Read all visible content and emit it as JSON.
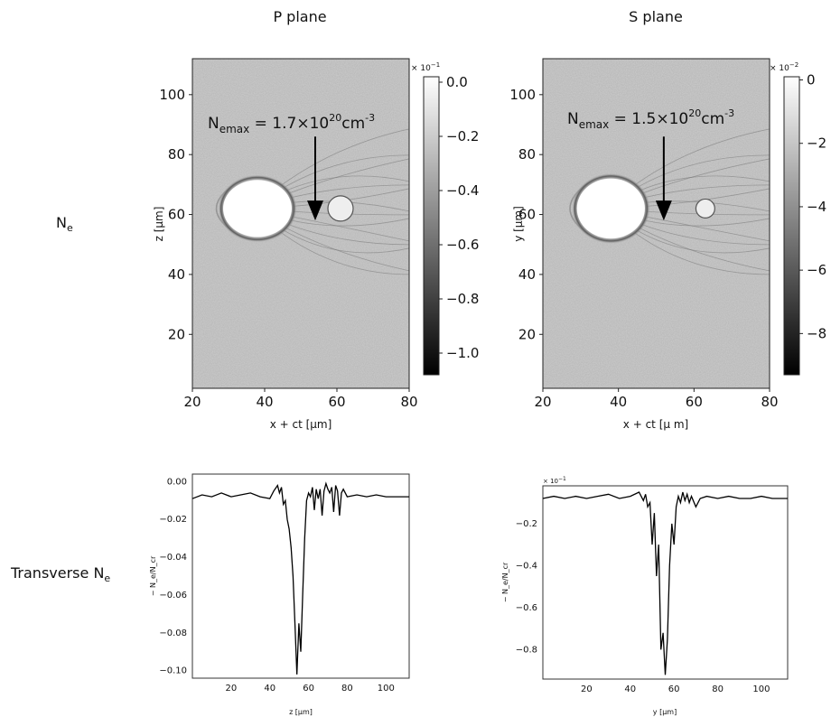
{
  "row_labels": {
    "density": "N",
    "density_sub": "e",
    "transverse": "Transverse N",
    "transverse_sub": "e"
  },
  "chart_data": [
    {
      "id": "p-plane-map",
      "type": "heatmap",
      "title": "P plane",
      "xlabel": "x + ct [µm]",
      "ylabel": "z [µm]",
      "xlim": [
        20,
        80
      ],
      "ylim": [
        2,
        112
      ],
      "xticks": [
        20,
        40,
        60,
        80
      ],
      "yticks": [
        20,
        40,
        60,
        80,
        100
      ],
      "annotation": {
        "main": "N",
        "sub": "emax",
        "eq": " = 1.7×10",
        "exp": "20",
        "unit": "cm",
        "unit_exp": "-3",
        "arrow_x": 54,
        "arrow_y_from": 86,
        "arrow_y_to": 58
      },
      "colorbar": {
        "ticks": [
          0.0,
          -0.2,
          -0.4,
          -0.6,
          -0.8,
          -1.0
        ],
        "tick_labels": [
          "0.0",
          "−0.2",
          "−0.4",
          "−0.6",
          "−0.8",
          "−1.0"
        ],
        "min": -1.08,
        "max": 0.02,
        "multiplier_base": "× 10",
        "multiplier_exp": "−1"
      },
      "colormap": "gray",
      "features": {
        "bubble_cx": 38,
        "bubble_cy": 62,
        "bubble_rx": 9.5,
        "bubble_ry": 9.5,
        "bubble2_cx": 61,
        "bubble2_cy": 62,
        "bubble2_r": 3.5
      }
    },
    {
      "id": "s-plane-map",
      "type": "heatmap",
      "title": "S plane",
      "xlabel": "x + ct [µ m]",
      "ylabel": "y [µm]",
      "xlim": [
        20,
        80
      ],
      "ylim": [
        2,
        112
      ],
      "xticks": [
        20,
        40,
        60,
        80
      ],
      "yticks": [
        20,
        40,
        60,
        80,
        100
      ],
      "annotation": {
        "main": "N",
        "sub": "emax",
        "eq": " = 1.5×10",
        "exp": "20",
        "unit": "cm",
        "unit_exp": "-3",
        "arrow_x": 52,
        "arrow_y_from": 86,
        "arrow_y_to": 58
      },
      "colorbar": {
        "ticks": [
          0,
          -2,
          -4,
          -6,
          -8
        ],
        "tick_labels": [
          "0",
          "−2",
          "−4",
          "−6",
          "−8"
        ],
        "min": -9.3,
        "max": 0.1,
        "multiplier_base": "× 10",
        "multiplier_exp": "−2"
      },
      "colormap": "gray",
      "features": {
        "bubble_cx": 38,
        "bubble_cy": 62,
        "bubble_rx": 9,
        "bubble_ry": 10,
        "bubble2_cx": 63,
        "bubble2_cy": 62,
        "bubble2_r": 2.5
      }
    },
    {
      "id": "p-plane-profile",
      "type": "line",
      "xlabel": "z [µm]",
      "ylabel": "− N_e/N_cr",
      "xlim": [
        0,
        112
      ],
      "ylim": [
        -0.104,
        0.004
      ],
      "xticks": [
        20,
        40,
        60,
        80,
        100
      ],
      "yticks": [
        0.0,
        -0.02,
        -0.04,
        -0.06,
        -0.08,
        -0.1
      ],
      "ytick_labels": [
        "0.00",
        "−0.02",
        "−0.04",
        "−0.06",
        "−0.08",
        "−0.10"
      ],
      "series": [
        {
          "x": [
            0,
            5,
            10,
            15,
            20,
            25,
            30,
            35,
            40,
            42,
            44,
            45,
            46,
            47,
            48,
            49,
            50,
            51,
            52,
            53,
            54,
            55,
            56,
            57,
            58,
            59,
            60,
            61,
            62,
            63,
            64,
            65,
            66,
            67,
            68,
            69,
            70,
            71,
            72,
            73,
            74,
            75,
            76,
            77,
            78,
            80,
            85,
            90,
            95,
            100,
            105,
            112
          ],
          "y": [
            -0.009,
            -0.007,
            -0.008,
            -0.006,
            -0.008,
            -0.007,
            -0.006,
            -0.008,
            -0.009,
            -0.005,
            -0.002,
            -0.006,
            -0.003,
            -0.012,
            -0.01,
            -0.02,
            -0.025,
            -0.035,
            -0.05,
            -0.076,
            -0.102,
            -0.075,
            -0.09,
            -0.06,
            -0.03,
            -0.01,
            -0.006,
            -0.008,
            -0.003,
            -0.015,
            -0.004,
            -0.009,
            -0.004,
            -0.018,
            -0.005,
            -0.001,
            -0.004,
            -0.006,
            -0.003,
            -0.016,
            -0.002,
            -0.005,
            -0.018,
            -0.006,
            -0.004,
            -0.008,
            -0.007,
            -0.008,
            -0.007,
            -0.008,
            -0.008,
            -0.008
          ]
        }
      ]
    },
    {
      "id": "s-plane-profile",
      "type": "line",
      "xlabel": "y [µm]",
      "ylabel": "− N_e/N_cr",
      "xlim": [
        0,
        112
      ],
      "ylim": [
        -0.94,
        -0.02
      ],
      "xticks": [
        20,
        40,
        60,
        80,
        100
      ],
      "yticks": [
        -0.2,
        -0.4,
        -0.6,
        -0.8
      ],
      "ytick_labels": [
        "−0.2",
        "−0.4",
        "−0.6",
        "−0.8"
      ],
      "multiplier_base": "× 10",
      "multiplier_exp": "−1",
      "series": [
        {
          "x": [
            0,
            5,
            10,
            15,
            20,
            25,
            30,
            35,
            40,
            44,
            46,
            47,
            48,
            49,
            50,
            51,
            52,
            53,
            54,
            55,
            56,
            57,
            58,
            59,
            60,
            61,
            62,
            63,
            64,
            65,
            66,
            67,
            68,
            70,
            72,
            75,
            80,
            85,
            90,
            95,
            100,
            105,
            112
          ],
          "y": [
            -0.08,
            -0.07,
            -0.08,
            -0.07,
            -0.08,
            -0.07,
            -0.06,
            -0.08,
            -0.07,
            -0.05,
            -0.09,
            -0.06,
            -0.12,
            -0.1,
            -0.3,
            -0.15,
            -0.45,
            -0.3,
            -0.8,
            -0.72,
            -0.92,
            -0.75,
            -0.4,
            -0.2,
            -0.3,
            -0.12,
            -0.07,
            -0.1,
            -0.05,
            -0.09,
            -0.06,
            -0.1,
            -0.07,
            -0.12,
            -0.08,
            -0.07,
            -0.08,
            -0.07,
            -0.08,
            -0.08,
            -0.07,
            -0.08,
            -0.08
          ]
        }
      ]
    }
  ]
}
